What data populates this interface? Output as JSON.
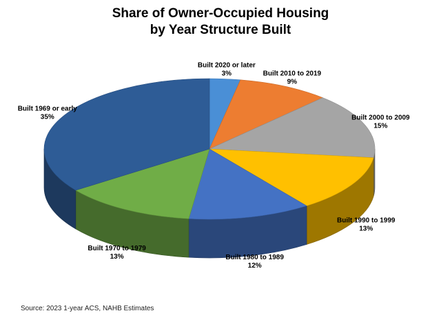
{
  "chart_data": {
    "type": "pie",
    "title_lines": [
      "Share of Owner-Occupied Housing",
      "by Year Structure Built"
    ],
    "slices": [
      {
        "label": "Built 2020 or later",
        "value": 3,
        "value_label": "3%",
        "color": "#4a8fd6"
      },
      {
        "label": "Built 2010 to 2019",
        "value": 9,
        "value_label": "9%",
        "color": "#ed7d31"
      },
      {
        "label": "Built 2000 to 2009",
        "value": 15,
        "value_label": "15%",
        "color": "#a5a5a5"
      },
      {
        "label": "Built 1990 to 1999",
        "value": 13,
        "value_label": "13%",
        "color": "#ffc000"
      },
      {
        "label": "Built 1980 to 1989",
        "value": 12,
        "value_label": "12%",
        "color": "#4472c4"
      },
      {
        "label": "Built 1970 to 1979",
        "value": 13,
        "value_label": "13%",
        "color": "#70ad47"
      },
      {
        "label": "Built 1969 or early",
        "value": 35,
        "value_label": "35%",
        "color": "#2e5c96"
      }
    ],
    "source": "Source: 2023 1-year ACS, NAHB Estimates"
  }
}
